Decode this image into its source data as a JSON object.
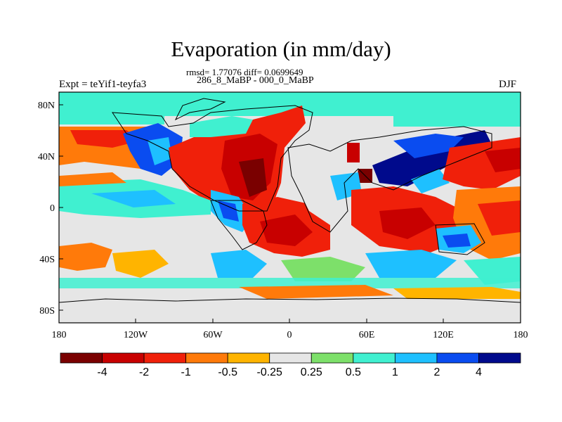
{
  "title": "Evaporation (in mm/day)",
  "stats_line": "rmsd= 1.77076 diff= 0.0699649",
  "comparison": "286_8_MaBP - 000_0_MaBP",
  "expt": "Expt = teYif1-teyfa3",
  "season": "DJF",
  "y_ticks": [
    "80N",
    "40N",
    "0",
    "40S",
    "80S"
  ],
  "x_ticks": [
    "180",
    "120W",
    "60W",
    "0",
    "60E",
    "120E",
    "180"
  ],
  "colorbar": {
    "colors": [
      "#7a0000",
      "#c80000",
      "#f0200a",
      "#ff7a0a",
      "#ffb400",
      "#e6e6e6",
      "#7de06a",
      "#40f0d0",
      "#1ec0ff",
      "#0a4cf0",
      "#000a8c"
    ],
    "labels": [
      "-4",
      "-2",
      "-1",
      "-0.5",
      "-0.25",
      "0.25",
      "0.5",
      "1",
      "2",
      "4"
    ]
  }
}
